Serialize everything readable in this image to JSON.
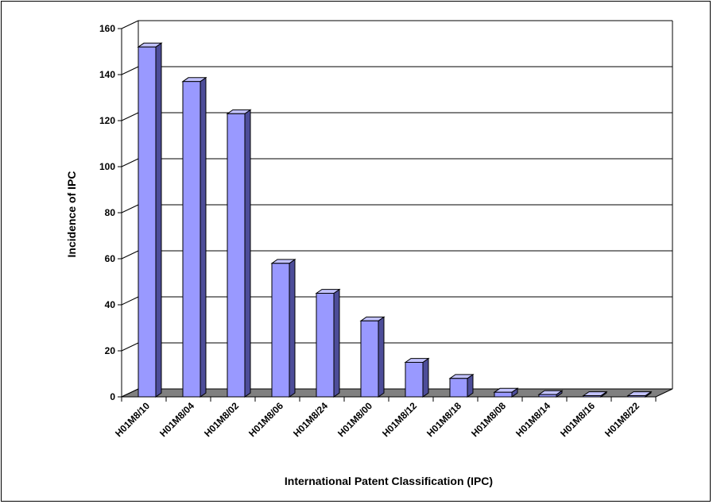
{
  "chart_data": {
    "type": "bar",
    "title": "",
    "xlabel": "International Patent Classification (IPC)",
    "ylabel": "Incidence of IPC",
    "categories": [
      "H01M8/10",
      "H01M8/04",
      "H01M8/02",
      "H01M8/06",
      "H01M8/24",
      "H01M8/00",
      "H01M8/12",
      "H01M8/18",
      "H01M8/08",
      "H01M8/14",
      "H01M8/16",
      "H01M8/22"
    ],
    "values": [
      152,
      137,
      123,
      58,
      45,
      33,
      15,
      8,
      2,
      1,
      0,
      0
    ],
    "ylim": [
      0,
      160
    ],
    "yticks": [
      0,
      20,
      40,
      60,
      80,
      100,
      120,
      140,
      160
    ],
    "grid": true,
    "legend": "none",
    "colors": {
      "bar_front": "#9999ff",
      "bar_side": "#4d4d99",
      "bar_top": "#c2c2ff",
      "floor": "#808080",
      "gridline": "#000000"
    }
  }
}
